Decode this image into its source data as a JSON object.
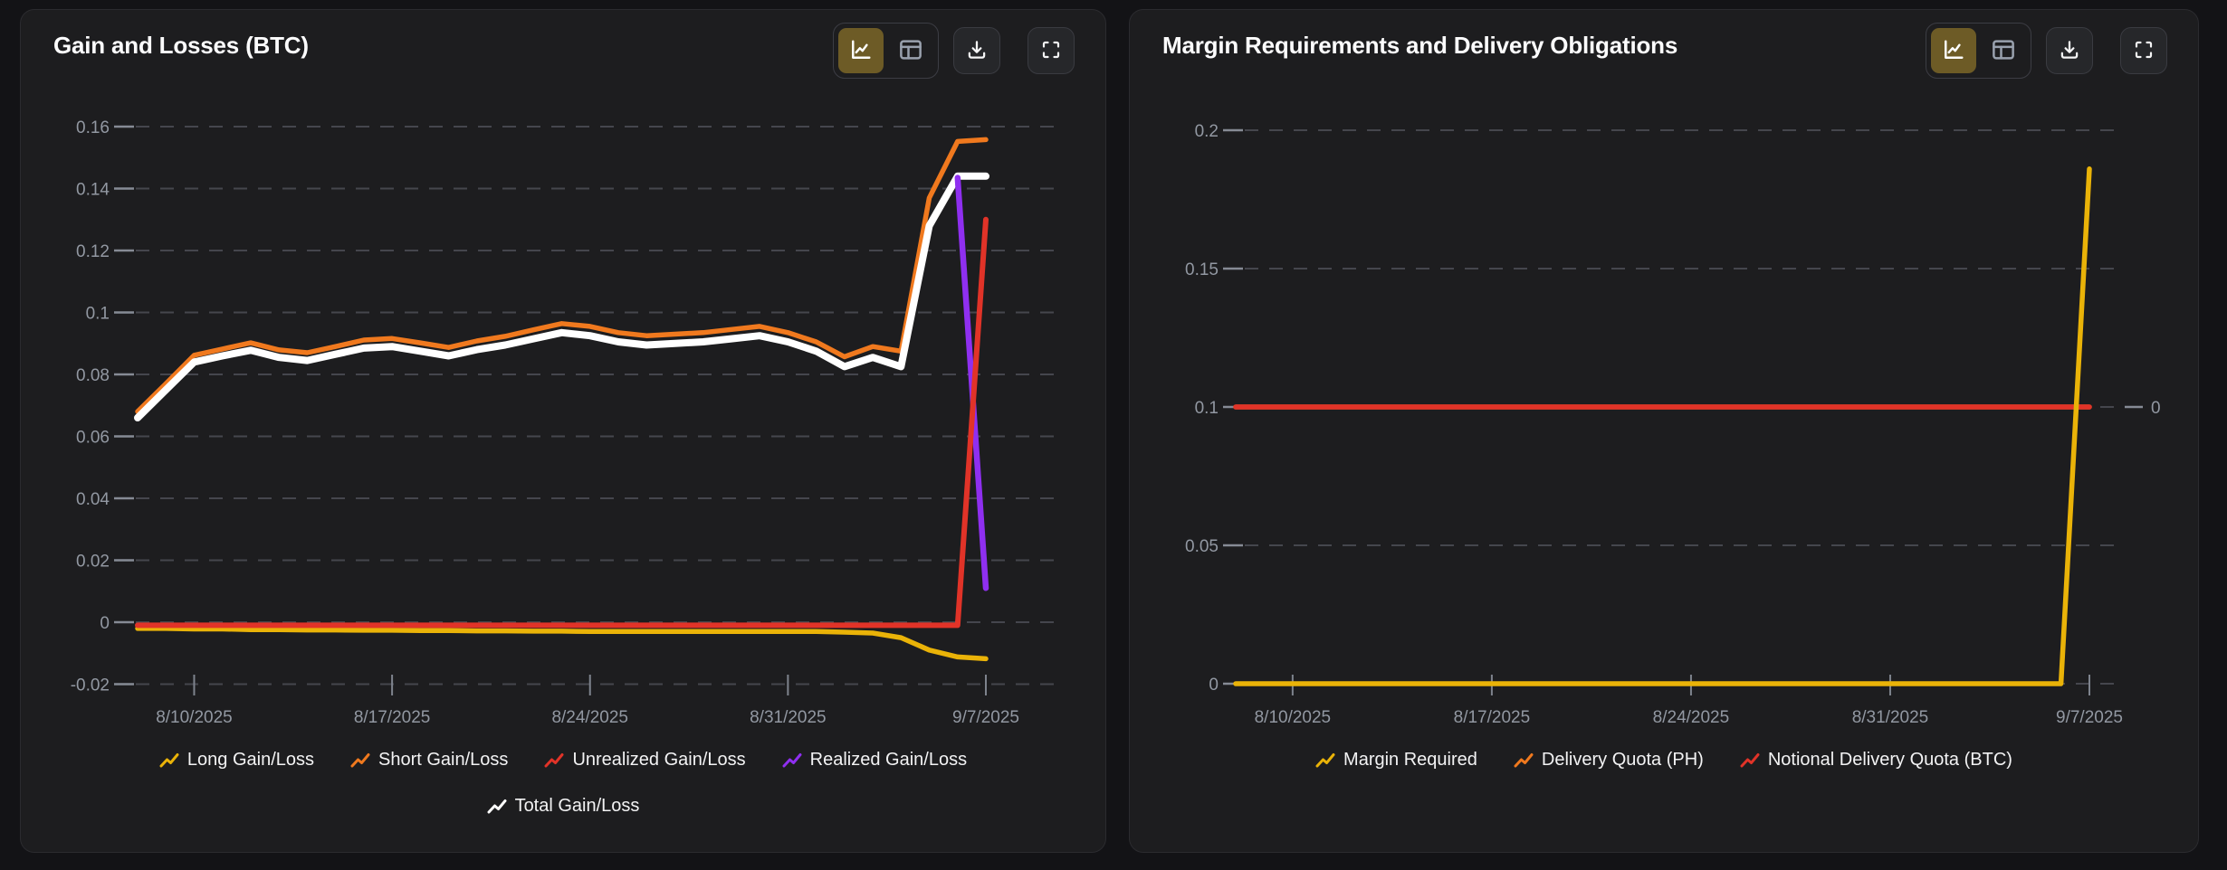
{
  "page": {
    "background": "#131316",
    "panel_background": "#1d1d1f"
  },
  "icons": {
    "line-chart-icon": "L-axis with zigzag trend line",
    "table-icon": "bordered table with header row",
    "download-icon": "arrow down into tray",
    "fullscreen-icon": "four corner brackets",
    "legend-trend-icon": "small zigzag rising line"
  },
  "colors": {
    "accent_active_button": "#6d5b26",
    "grid_dash": "#45464d",
    "axis_text": "#9298a2",
    "yellow": "#eab308",
    "orange": "#f0791e",
    "red": "#e13328",
    "purple": "#8f2ff0",
    "white": "#ffffff"
  },
  "charts": [
    {
      "title": "Gain and Losses (BTC)",
      "toolbar": {
        "buttons": [
          "line-chart-view",
          "table-view",
          "download",
          "fullscreen"
        ],
        "active": "line-chart-view"
      },
      "chart_data": {
        "type": "line",
        "title": "Gain and Losses (BTC)",
        "x_dates": [
          "8/8/2025",
          "8/9/2025",
          "8/10/2025",
          "8/11/2025",
          "8/12/2025",
          "8/13/2025",
          "8/14/2025",
          "8/15/2025",
          "8/16/2025",
          "8/17/2025",
          "8/18/2025",
          "8/19/2025",
          "8/20/2025",
          "8/21/2025",
          "8/22/2025",
          "8/23/2025",
          "8/24/2025",
          "8/25/2025",
          "8/26/2025",
          "8/27/2025",
          "8/28/2025",
          "8/29/2025",
          "8/30/2025",
          "8/31/2025",
          "9/1/2025",
          "9/2/2025",
          "9/3/2025",
          "9/4/2025",
          "9/5/2025",
          "9/6/2025",
          "9/7/2025"
        ],
        "x_tick_labels": [
          "8/10/2025",
          "8/17/2025",
          "8/24/2025",
          "8/31/2025",
          "9/7/2025"
        ],
        "x_tick_indices": [
          2,
          9,
          16,
          23,
          30
        ],
        "y_ticks": [
          0.16,
          0.14,
          0.12,
          0.1,
          0.08,
          0.06,
          0.04,
          0.02,
          0,
          -0.02
        ],
        "y_tick_labels": [
          "0.16",
          "0.14",
          "0.12",
          "0.1",
          "0.08",
          "0.06",
          "0.04",
          "0.02",
          "0",
          "-0.02"
        ],
        "ylim": [
          -0.02,
          0.16
        ],
        "grid": "dashed horizontal",
        "legend_position": "bottom-center",
        "series": [
          {
            "name": "Long Gain/Loss",
            "color": "#eab308",
            "values": [
              -0.002,
              -0.002,
              -0.0022,
              -0.0022,
              -0.0024,
              -0.0024,
              -0.0025,
              -0.0025,
              -0.0026,
              -0.0026,
              -0.0027,
              -0.0027,
              -0.0028,
              -0.0028,
              -0.0029,
              -0.0029,
              -0.003,
              -0.003,
              -0.003,
              -0.003,
              -0.003,
              -0.003,
              -0.003,
              -0.003,
              -0.003,
              -0.0032,
              -0.0035,
              -0.005,
              -0.009,
              -0.0112,
              -0.0118
            ]
          },
          {
            "name": "Short Gain/Loss",
            "color": "#f0791e",
            "values": [
              0.068,
              0.077,
              0.0862,
              0.0882,
              0.0902,
              0.0879,
              0.087,
              0.089,
              0.0911,
              0.0916,
              0.0902,
              0.0887,
              0.0908,
              0.0923,
              0.0944,
              0.0964,
              0.0955,
              0.0935,
              0.0925,
              0.093,
              0.0935,
              0.0945,
              0.0955,
              0.0935,
              0.0905,
              0.0857,
              0.089,
              0.0875,
              0.137,
              0.1552,
              0.1558
            ]
          },
          {
            "name": "Total Gain/Loss",
            "color": "#ffffff",
            "values": [
              0.066,
              0.075,
              0.084,
              0.086,
              0.0878,
              0.0855,
              0.0845,
              0.0865,
              0.0885,
              0.089,
              0.0875,
              0.086,
              0.088,
              0.0895,
              0.0915,
              0.0935,
              0.0925,
              0.0905,
              0.0895,
              0.09,
              0.0905,
              0.0915,
              0.0925,
              0.0905,
              0.0875,
              0.0825,
              0.0855,
              0.0825,
              0.128,
              0.144,
              0.144
            ]
          },
          {
            "name": "Realized Gain/Loss",
            "color": "#8f2ff0",
            "values": [
              null,
              null,
              null,
              null,
              null,
              null,
              null,
              null,
              null,
              null,
              null,
              null,
              null,
              null,
              null,
              null,
              null,
              null,
              null,
              null,
              null,
              null,
              null,
              null,
              null,
              null,
              null,
              null,
              null,
              0.1435,
              0.011
            ]
          },
          {
            "name": "Unrealized Gain/Loss",
            "color": "#e13328",
            "values": [
              -0.001,
              -0.001,
              -0.001,
              -0.001,
              -0.001,
              -0.001,
              -0.001,
              -0.001,
              -0.001,
              -0.001,
              -0.001,
              -0.001,
              -0.001,
              -0.001,
              -0.001,
              -0.001,
              -0.001,
              -0.001,
              -0.001,
              -0.001,
              -0.001,
              -0.001,
              -0.001,
              -0.001,
              -0.001,
              -0.001,
              -0.001,
              -0.001,
              -0.001,
              -0.001,
              0.13
            ]
          }
        ],
        "legend_rows": [
          [
            "Long Gain/Loss",
            "Short Gain/Loss",
            "Unrealized Gain/Loss",
            "Realized Gain/Loss"
          ],
          [
            "Total Gain/Loss"
          ]
        ]
      }
    },
    {
      "title": "Margin Requirements and Delivery Obligations",
      "toolbar": {
        "buttons": [
          "line-chart-view",
          "table-view",
          "download",
          "fullscreen"
        ],
        "active": "line-chart-view"
      },
      "chart_data": {
        "type": "line",
        "title": "Margin Requirements and Delivery Obligations",
        "x_dates": [
          "8/8/2025",
          "8/9/2025",
          "8/10/2025",
          "8/11/2025",
          "8/12/2025",
          "8/13/2025",
          "8/14/2025",
          "8/15/2025",
          "8/16/2025",
          "8/17/2025",
          "8/18/2025",
          "8/19/2025",
          "8/20/2025",
          "8/21/2025",
          "8/22/2025",
          "8/23/2025",
          "8/24/2025",
          "8/25/2025",
          "8/26/2025",
          "8/27/2025",
          "8/28/2025",
          "8/29/2025",
          "8/30/2025",
          "8/31/2025",
          "9/1/2025",
          "9/2/2025",
          "9/3/2025",
          "9/4/2025",
          "9/5/2025",
          "9/6/2025",
          "9/7/2025"
        ],
        "x_tick_labels": [
          "8/10/2025",
          "8/17/2025",
          "8/24/2025",
          "8/31/2025",
          "9/7/2025"
        ],
        "x_tick_indices": [
          2,
          9,
          16,
          23,
          30
        ],
        "y_ticks": [
          0.2,
          0.15,
          0.1,
          0.05,
          0
        ],
        "y_tick_labels": [
          "0.2",
          "0.15",
          "0.1",
          "0.05",
          "0"
        ],
        "ylim": [
          0,
          0.2
        ],
        "grid": "dashed horizontal",
        "legend_position": "bottom-center",
        "right_axis": {
          "label": "0",
          "aligned_left_value": 0.1
        },
        "series": [
          {
            "name": "Delivery Quota (PH)",
            "color": "#f0791e",
            "axis": "right",
            "values": [
              0,
              0,
              0,
              0,
              0,
              0,
              0,
              0,
              0,
              0,
              0,
              0,
              0,
              0,
              0,
              0,
              0,
              0,
              0,
              0,
              0,
              0,
              0,
              0,
              0,
              0,
              0,
              0,
              0,
              0,
              0
            ]
          },
          {
            "name": "Notional Delivery Quota (BTC)",
            "color": "#e13328",
            "values": [
              0.1,
              0.1,
              0.1,
              0.1,
              0.1,
              0.1,
              0.1,
              0.1,
              0.1,
              0.1,
              0.1,
              0.1,
              0.1,
              0.1,
              0.1,
              0.1,
              0.1,
              0.1,
              0.1,
              0.1,
              0.1,
              0.1,
              0.1,
              0.1,
              0.1,
              0.1,
              0.1,
              0.1,
              0.1,
              0.1,
              0.1
            ]
          },
          {
            "name": "Margin Required",
            "color": "#eab308",
            "values": [
              0,
              0,
              0,
              0,
              0,
              0,
              0,
              0,
              0,
              0,
              0,
              0,
              0,
              0,
              0,
              0,
              0,
              0,
              0,
              0,
              0,
              0,
              0,
              0,
              0,
              0,
              0,
              0,
              0,
              0,
              0.186
            ]
          }
        ],
        "legend_rows": [
          [
            "Margin Required",
            "Delivery Quota (PH)",
            "Notional Delivery Quota (BTC)"
          ]
        ]
      }
    }
  ]
}
